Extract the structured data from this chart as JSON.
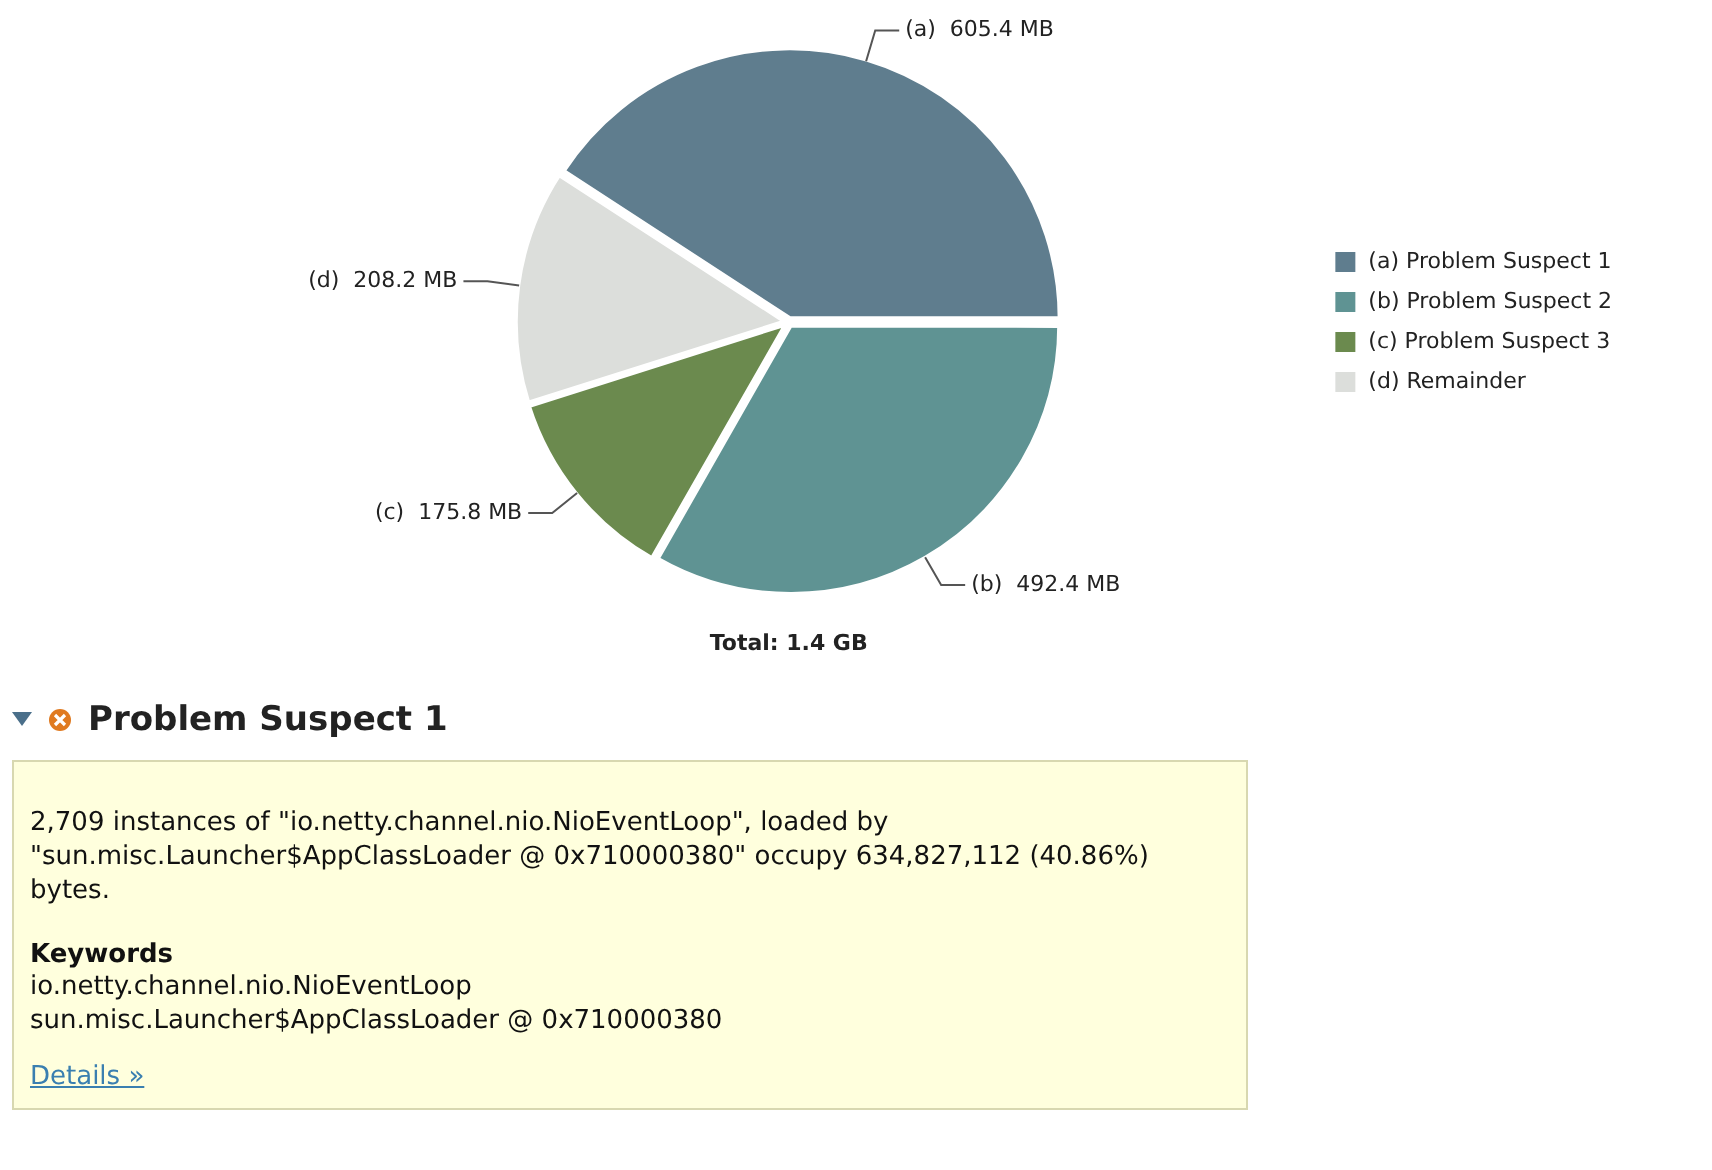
{
  "chart_data": [
    {
      "type": "pie",
      "categories": [
        "(a) Problem Suspect 1",
        "(b) Problem Suspect 2",
        "(c) Problem Suspect 3",
        "(d) Remainder"
      ],
      "values": [
        605.4,
        492.4,
        175.8,
        208.2
      ],
      "colors": [
        "#5f7d8e",
        "#5f9393",
        "#6b8a4e",
        "#dcdedb"
      ],
      "value_labels": [
        "(a)  605.4 MB",
        "(b)  492.4 MB",
        "(c)  175.8 MB",
        "(d)  208.2 MB"
      ],
      "legend": "right",
      "annotations": [
        "Total: 1.4 GB"
      ]
    },
    {
      "type": "other",
      "title": "Problem Suspect 1",
      "annotations": [
        "2,709 instances of \"io.netty.channel.nio.NioEventLoop\", loaded by \"sun.misc.Launcher$AppClassLoader @ 0x710000380\" occupy 634,827,112 (40.86%) bytes.",
        "Keywords",
        "io.netty.channel.nio.NioEventLoop",
        "sun.misc.Launcher$AppClassLoader @ 0x710000380",
        "Details »"
      ]
    }
  ]
}
